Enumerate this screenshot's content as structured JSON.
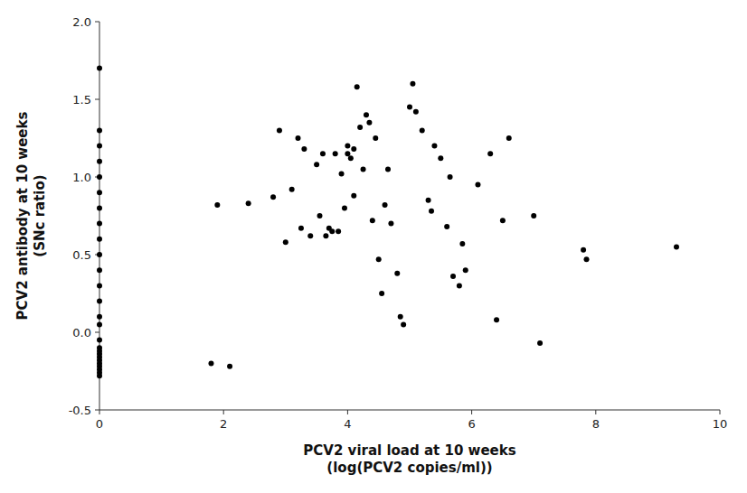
{
  "chart_data": {
    "type": "scatter",
    "xlabel": "PCV2 viral load at 10 weeks\n(log(PCV2 copies/ml))",
    "ylabel": "PCV2 antibody at 10 weeks\n(SNc ratio)",
    "x": [
      0.0,
      0.0,
      0.0,
      0.0,
      0.0,
      0.0,
      0.0,
      0.0,
      0.0,
      0.0,
      0.0,
      0.0,
      0.0,
      0.0,
      0.0,
      0.0,
      0.0,
      0.0,
      0.0,
      0.0,
      0.0,
      0.0,
      0.0,
      0.0,
      0.0,
      0.0,
      1.8,
      1.9,
      2.1,
      2.4,
      2.8,
      2.9,
      3.0,
      3.1,
      3.2,
      3.25,
      3.3,
      3.4,
      3.5,
      3.55,
      3.6,
      3.65,
      3.7,
      3.75,
      3.8,
      3.85,
      3.9,
      3.95,
      4.0,
      4.0,
      4.05,
      4.1,
      4.1,
      4.15,
      4.2,
      4.25,
      4.3,
      4.35,
      4.4,
      4.45,
      4.5,
      4.55,
      4.6,
      4.65,
      4.7,
      4.8,
      4.85,
      4.9,
      5.0,
      5.05,
      5.1,
      5.2,
      5.3,
      5.35,
      5.4,
      5.5,
      5.6,
      5.65,
      5.7,
      5.8,
      5.85,
      5.9,
      6.1,
      6.3,
      6.4,
      6.5,
      6.6,
      7.0,
      7.1,
      7.8,
      7.85,
      9.3
    ],
    "values": [
      1.7,
      1.3,
      1.2,
      1.1,
      1.0,
      0.9,
      0.8,
      0.7,
      0.6,
      0.5,
      0.4,
      0.3,
      0.2,
      0.1,
      0.05,
      -0.05,
      -0.1,
      -0.12,
      -0.14,
      -0.16,
      -0.18,
      -0.2,
      -0.22,
      -0.24,
      -0.26,
      -0.28,
      -0.2,
      0.82,
      -0.22,
      0.83,
      0.87,
      1.3,
      0.58,
      0.92,
      1.25,
      0.67,
      1.18,
      0.62,
      1.08,
      0.75,
      1.15,
      0.62,
      0.67,
      0.65,
      1.15,
      0.65,
      1.02,
      0.8,
      1.2,
      1.15,
      1.12,
      1.18,
      0.88,
      1.58,
      1.32,
      1.05,
      1.4,
      1.35,
      0.72,
      1.25,
      0.47,
      0.25,
      0.82,
      1.05,
      0.7,
      0.38,
      0.1,
      0.05,
      1.45,
      1.6,
      1.42,
      1.3,
      0.85,
      0.78,
      1.2,
      1.12,
      0.68,
      1.0,
      0.36,
      0.3,
      0.57,
      0.4,
      0.95,
      1.15,
      0.08,
      0.72,
      1.25,
      0.75,
      -0.07,
      0.53,
      0.47,
      0.55
    ],
    "color": "#000000",
    "xlim": [
      0,
      10
    ],
    "ylim": [
      -0.5,
      2.0
    ],
    "xticks": [
      0,
      2,
      4,
      6,
      8,
      10
    ],
    "yticks": [
      -0.5,
      {
        "value": 0.0,
        "label": "0.0"
      },
      0.5,
      {
        "value": 1.0,
        "label": "1.0"
      },
      1.5,
      {
        "value": 2.0,
        "label": "2.0"
      }
    ]
  }
}
